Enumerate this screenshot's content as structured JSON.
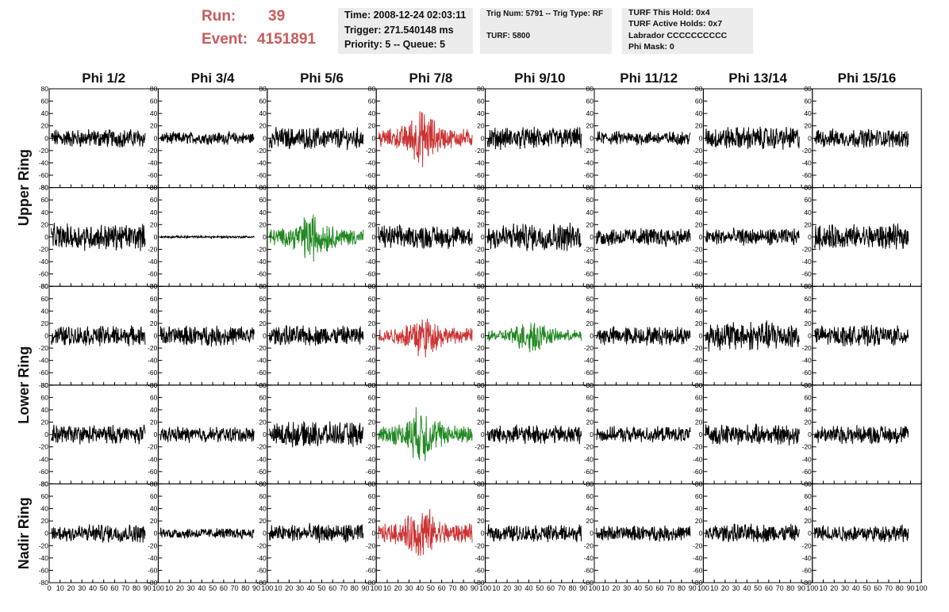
{
  "header": {
    "run_label": "Run:",
    "run_value": "39",
    "event_label": "Event:",
    "event_value": "4151891",
    "time": "Time: 2008-12-24 02:03:11",
    "trigger": "Trigger: 271.540148 ms",
    "priority": "Priority: 5 -- Queue: 5",
    "trig_num": "Trig Num: 5791 -- Trig Type: RF",
    "turf": "TURF: 5800",
    "turf_hold": "TURF This Hold: 0x4",
    "turf_active": "TURF Active Holds: 0x7",
    "labrador": "Labrador CCCCCCCCCC",
    "phi_mask": "Phi Mask: 0"
  },
  "chart_data": {
    "type": "line",
    "column_titles": [
      "Phi 1/2",
      "Phi 3/4",
      "Phi 5/6",
      "Phi 7/8",
      "Phi 9/10",
      "Phi 11/12",
      "Phi 13/14",
      "Phi 15/16"
    ],
    "ring_labels": [
      "Upper Ring",
      "Lower Ring",
      "Nadir Ring"
    ],
    "x_ticks": [
      0,
      10,
      20,
      30,
      40,
      50,
      60,
      70,
      80,
      90,
      100
    ],
    "y_ticks": [
      -80,
      -60,
      -40,
      -20,
      0,
      20,
      40,
      60,
      80
    ],
    "xlim": [
      0,
      100
    ],
    "ylim": [
      -80,
      80
    ],
    "colors": {
      "normal": "#000000",
      "triggered": "#cc3333",
      "coincident": "#228822"
    },
    "panels": [
      {
        "row": 0,
        "col": 0,
        "color": "normal",
        "amplitude": 12
      },
      {
        "row": 0,
        "col": 1,
        "color": "normal",
        "amplitude": 8
      },
      {
        "row": 0,
        "col": 2,
        "color": "normal",
        "amplitude": 14
      },
      {
        "row": 0,
        "col": 3,
        "color": "triggered",
        "amplitude": 22,
        "burst": true
      },
      {
        "row": 0,
        "col": 4,
        "color": "normal",
        "amplitude": 14
      },
      {
        "row": 0,
        "col": 5,
        "color": "normal",
        "amplitude": 9
      },
      {
        "row": 0,
        "col": 6,
        "color": "normal",
        "amplitude": 15
      },
      {
        "row": 0,
        "col": 7,
        "color": "normal",
        "amplitude": 12
      },
      {
        "row": 1,
        "col": 0,
        "color": "normal",
        "amplitude": 17
      },
      {
        "row": 1,
        "col": 1,
        "color": "normal",
        "amplitude": 1.5
      },
      {
        "row": 1,
        "col": 2,
        "color": "coincident",
        "amplitude": 20,
        "burst": true
      },
      {
        "row": 1,
        "col": 3,
        "color": "normal",
        "amplitude": 15
      },
      {
        "row": 1,
        "col": 4,
        "color": "normal",
        "amplitude": 18
      },
      {
        "row": 1,
        "col": 5,
        "color": "normal",
        "amplitude": 12
      },
      {
        "row": 1,
        "col": 6,
        "color": "normal",
        "amplitude": 11
      },
      {
        "row": 1,
        "col": 7,
        "color": "normal",
        "amplitude": 16
      },
      {
        "row": 2,
        "col": 0,
        "color": "normal",
        "amplitude": 13
      },
      {
        "row": 2,
        "col": 1,
        "color": "normal",
        "amplitude": 13
      },
      {
        "row": 2,
        "col": 2,
        "color": "normal",
        "amplitude": 13
      },
      {
        "row": 2,
        "col": 3,
        "color": "triggered",
        "amplitude": 18,
        "burst": true
      },
      {
        "row": 2,
        "col": 4,
        "color": "coincident",
        "amplitude": 14,
        "burst": true
      },
      {
        "row": 2,
        "col": 5,
        "color": "normal",
        "amplitude": 12
      },
      {
        "row": 2,
        "col": 6,
        "color": "normal",
        "amplitude": 19
      },
      {
        "row": 2,
        "col": 7,
        "color": "normal",
        "amplitude": 13
      },
      {
        "row": 3,
        "col": 0,
        "color": "normal",
        "amplitude": 12
      },
      {
        "row": 3,
        "col": 1,
        "color": "normal",
        "amplitude": 10
      },
      {
        "row": 3,
        "col": 2,
        "color": "normal",
        "amplitude": 16
      },
      {
        "row": 3,
        "col": 3,
        "color": "coincident",
        "amplitude": 22,
        "burst": true
      },
      {
        "row": 3,
        "col": 4,
        "color": "normal",
        "amplitude": 12
      },
      {
        "row": 3,
        "col": 5,
        "color": "normal",
        "amplitude": 10
      },
      {
        "row": 3,
        "col": 6,
        "color": "normal",
        "amplitude": 13
      },
      {
        "row": 3,
        "col": 7,
        "color": "normal",
        "amplitude": 12
      },
      {
        "row": 4,
        "col": 0,
        "color": "normal",
        "amplitude": 12
      },
      {
        "row": 4,
        "col": 1,
        "color": "normal",
        "amplitude": 7
      },
      {
        "row": 4,
        "col": 2,
        "color": "normal",
        "amplitude": 12
      },
      {
        "row": 4,
        "col": 3,
        "color": "triggered",
        "amplitude": 22,
        "burst": true
      },
      {
        "row": 4,
        "col": 4,
        "color": "normal",
        "amplitude": 11
      },
      {
        "row": 4,
        "col": 5,
        "color": "normal",
        "amplitude": 10
      },
      {
        "row": 4,
        "col": 6,
        "color": "normal",
        "amplitude": 12
      },
      {
        "row": 4,
        "col": 7,
        "color": "normal",
        "amplitude": 11
      }
    ]
  }
}
